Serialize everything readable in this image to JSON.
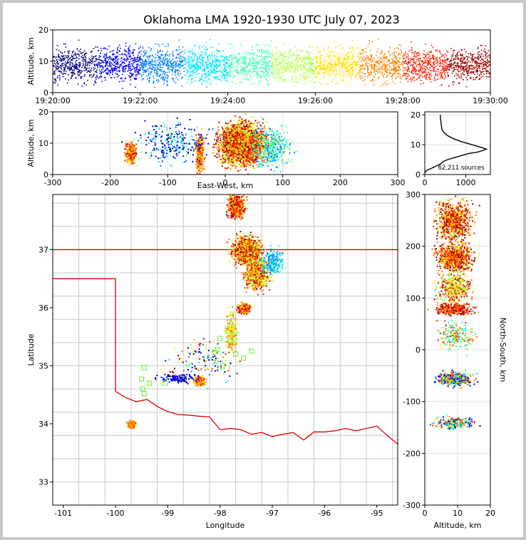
{
  "chart_data": [
    {
      "type": "scatter",
      "panel": "altitude-time",
      "title": "Oklahoma LMA 1920-1930 UTC July 07, 2023",
      "xlabel": "",
      "ylabel": "Altitude, km",
      "x_ticks": [
        "19:20:00",
        "19:22:00",
        "19:24:00",
        "19:26:00",
        "19:28:00",
        "19:30:00"
      ],
      "xlim": [
        "19:20:00",
        "19:30:00"
      ],
      "ylim": [
        0,
        20
      ],
      "y_ticks": [
        0,
        10,
        20
      ],
      "color_encoding": "time",
      "colormap": [
        "#00008b",
        "#0000ff",
        "#0080ff",
        "#00e5ff",
        "#40ffb0",
        "#b0ff40",
        "#ffe000",
        "#ff8000",
        "#ff2000",
        "#a00000"
      ]
    },
    {
      "type": "scatter",
      "panel": "altitude-east-west",
      "xlabel": "East-West, km",
      "ylabel": "Altitude, km",
      "xlim": [
        -300,
        300
      ],
      "x_ticks": [
        -300,
        -200,
        -100,
        0,
        100,
        200,
        300
      ],
      "ylim": [
        0,
        20
      ],
      "y_ticks": [
        0,
        10,
        20
      ]
    },
    {
      "type": "line",
      "panel": "altitude-histogram",
      "xlim": [
        0,
        1600
      ],
      "x_ticks": [
        0,
        1000
      ],
      "ylim": [
        0,
        21
      ],
      "y_ticks": [
        0,
        10,
        20
      ],
      "annotation": "62,211 sources",
      "x": [
        0,
        20,
        60,
        150,
        300,
        380,
        420,
        470,
        560,
        800,
        1050,
        1280,
        1400,
        1500,
        1400,
        1150,
        900,
        700,
        560,
        470,
        420,
        400,
        380,
        380
      ],
      "y": [
        0.5,
        1,
        1.5,
        2,
        3,
        3.5,
        4,
        4.5,
        5,
        6,
        7,
        7.5,
        8,
        8.5,
        9,
        10,
        11,
        12,
        13,
        14,
        15,
        17,
        19,
        20
      ]
    },
    {
      "type": "scatter",
      "panel": "plan-view",
      "xlabel": "Longitude",
      "ylabel": "Latitude",
      "xlim": [
        -101.2,
        -94.6
      ],
      "ylim": [
        32.6,
        37.95
      ],
      "x_ticks": [
        -101,
        -100,
        -99,
        -98,
        -97,
        -96,
        -95
      ],
      "y_ticks": [
        33,
        34,
        35,
        36,
        37
      ],
      "stations_marker": "green-square"
    },
    {
      "type": "scatter",
      "panel": "north-south-altitude",
      "xlabel": "Altitude, km",
      "ylabel": "North-South, km",
      "xlim": [
        0,
        20
      ],
      "x_ticks": [
        0,
        10,
        20
      ],
      "ylim": [
        -300,
        300
      ],
      "y_ticks": [
        -300,
        -200,
        -100,
        0,
        100,
        200,
        300
      ]
    }
  ]
}
